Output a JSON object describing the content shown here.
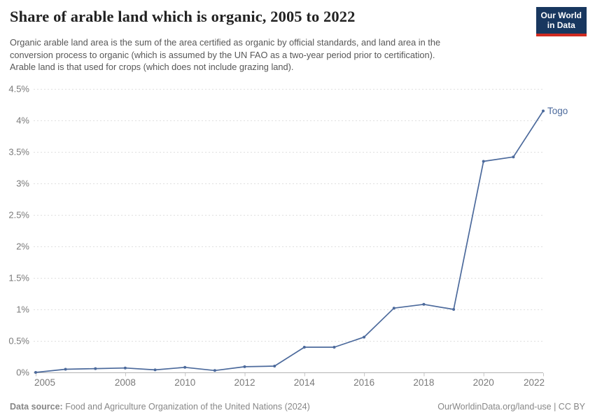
{
  "header": {
    "title": "Share of arable land which is organic, 2005 to 2022",
    "subtitle_lines": [
      "Organic arable land area is the sum of the area certified as organic by official standards, and land area in the",
      "conversion process to organic (which is assumed by the UN FAO as a two-year period prior to certification).",
      "Arable land is that used for crops (which does not include grazing land)."
    ]
  },
  "logo": {
    "line1": "Our World",
    "line2": "in Data",
    "bg_color": "#18375f",
    "accent_color": "#d02b20"
  },
  "chart_data": {
    "type": "line",
    "title": "Share of arable land which is organic, 2005 to 2022",
    "x": [
      2005,
      2006,
      2007,
      2008,
      2009,
      2010,
      2011,
      2012,
      2013,
      2014,
      2015,
      2016,
      2017,
      2018,
      2019,
      2020,
      2021,
      2022
    ],
    "series": [
      {
        "name": "Togo",
        "color": "#4c6a9c",
        "values": [
          0.0,
          0.05,
          0.06,
          0.07,
          0.04,
          0.08,
          0.03,
          0.09,
          0.1,
          0.4,
          0.4,
          0.56,
          1.02,
          1.08,
          1.0,
          3.35,
          3.42,
          4.15
        ]
      }
    ],
    "end_label": "Togo",
    "xlabel": "",
    "ylabel": "",
    "ylim": [
      0,
      4.5
    ],
    "xlim": [
      2005,
      2022
    ],
    "yticks": [
      {
        "value": 0,
        "label": "0%"
      },
      {
        "value": 0.5,
        "label": "0.5%"
      },
      {
        "value": 1,
        "label": "1%"
      },
      {
        "value": 1.5,
        "label": "1.5%"
      },
      {
        "value": 2,
        "label": "2%"
      },
      {
        "value": 2.5,
        "label": "2.5%"
      },
      {
        "value": 3,
        "label": "3%"
      },
      {
        "value": 3.5,
        "label": "3.5%"
      },
      {
        "value": 4,
        "label": "4%"
      },
      {
        "value": 4.5,
        "label": "4.5%"
      }
    ],
    "xticks": [
      2005,
      2008,
      2010,
      2012,
      2014,
      2016,
      2018,
      2020,
      2022
    ],
    "grid": "horizontal-dashed",
    "legend_position": "end-of-line"
  },
  "colors": {
    "grid": "#e0e0e0",
    "axis": "#b3b3b3",
    "tick": "#c4c4c4"
  },
  "footer": {
    "source_label": "Data source:",
    "source_text": "Food and Agriculture Organization of the United Nations (2024)",
    "right_text": "OurWorldinData.org/land-use | CC BY"
  }
}
